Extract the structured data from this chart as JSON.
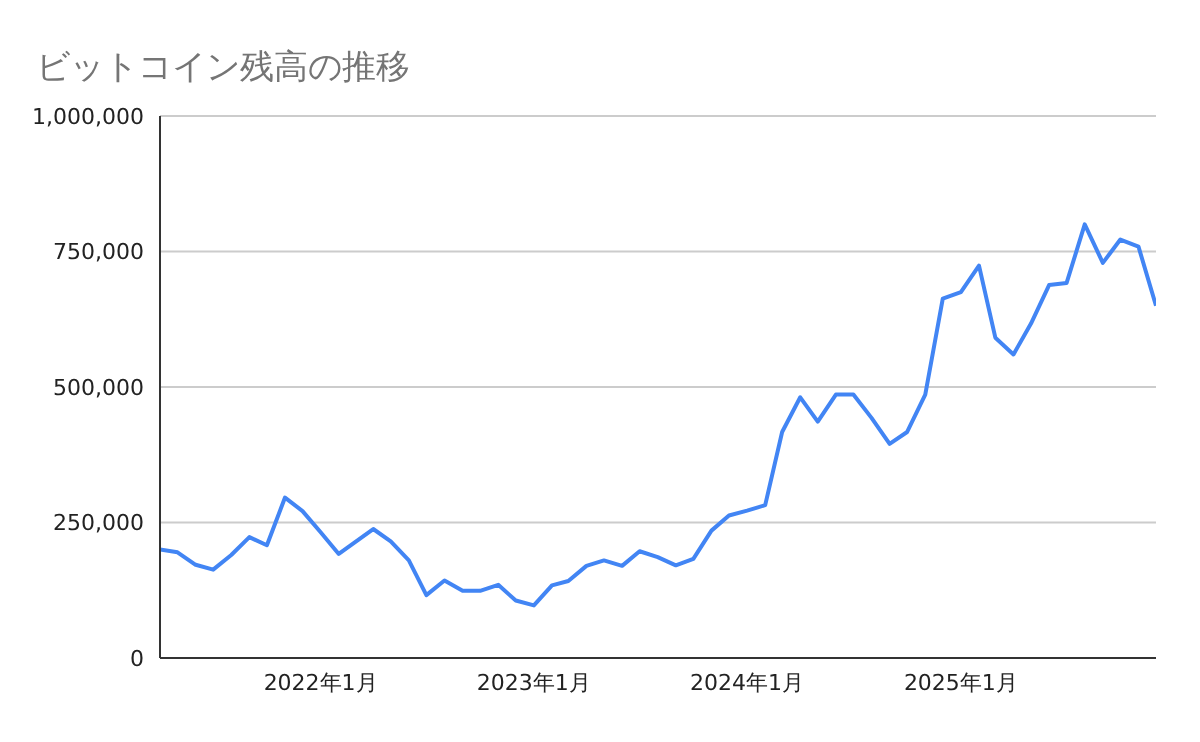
{
  "chart_data": {
    "type": "line",
    "title": "ビットコイン残高の推移",
    "x": [
      "2021-04",
      "2021-05",
      "2021-06",
      "2021-07",
      "2021-08",
      "2021-09",
      "2021-10",
      "2021-11",
      "2021-12",
      "2022-01",
      "2022-02",
      "2022-03",
      "2022-04",
      "2022-05",
      "2022-06",
      "2022-07",
      "2022-08",
      "2022-09",
      "2022-10",
      "2022-11",
      "2022-12",
      "2023-01",
      "2023-02",
      "2023-03",
      "2023-04",
      "2023-05",
      "2023-06",
      "2023-07",
      "2023-08",
      "2023-09",
      "2023-10",
      "2023-11",
      "2023-12",
      "2024-01",
      "2024-02",
      "2024-03",
      "2024-04",
      "2024-05",
      "2024-06",
      "2024-07",
      "2024-08",
      "2024-09",
      "2024-10",
      "2024-11",
      "2024-12",
      "2025-01",
      "2025-02",
      "2025-03",
      "2025-04",
      "2025-05",
      "2025-06",
      "2025-07",
      "2025-08",
      "2025-09",
      "2025-10",
      "2025-11",
      "2025-12"
    ],
    "series": [
      {
        "color": "#4285f4",
        "values": [
          200000,
          195000,
          172000,
          163000,
          190000,
          223000,
          208000,
          296000,
          271000,
          232000,
          192000,
          214000,
          238000,
          215000,
          180000,
          116000,
          143000,
          124000,
          124000,
          135000,
          106000,
          97000,
          134000,
          142000,
          170000,
          180000,
          170000,
          197000,
          186000,
          171000,
          183000,
          235000,
          263000,
          272000,
          282000,
          417000,
          481000,
          436000,
          486000,
          486000,
          443000,
          395000,
          417000,
          486000,
          663000,
          675000,
          724000,
          591000,
          560000,
          617000,
          688000,
          692000,
          800000,
          729000,
          772000,
          759000,
          650000
        ]
      }
    ],
    "xlim": [
      "2021-04",
      "2025-12"
    ],
    "xticks": [
      {
        "value": "2022-01",
        "label": "2022年1月"
      },
      {
        "value": "2023-01",
        "label": "2023年1月"
      },
      {
        "value": "2024-01",
        "label": "2024年1月"
      },
      {
        "value": "2025-01",
        "label": "2025年1月"
      }
    ],
    "ylim": [
      0,
      1000000
    ],
    "yticks": [
      {
        "value": 0,
        "label": "0"
      },
      {
        "value": 250000,
        "label": "250,000"
      },
      {
        "value": 500000,
        "label": "500,000"
      },
      {
        "value": 750000,
        "label": "750,000"
      },
      {
        "value": 1000000,
        "label": "1,000,000"
      }
    ],
    "grid": "y",
    "marker": "none",
    "line_style": "solid"
  }
}
